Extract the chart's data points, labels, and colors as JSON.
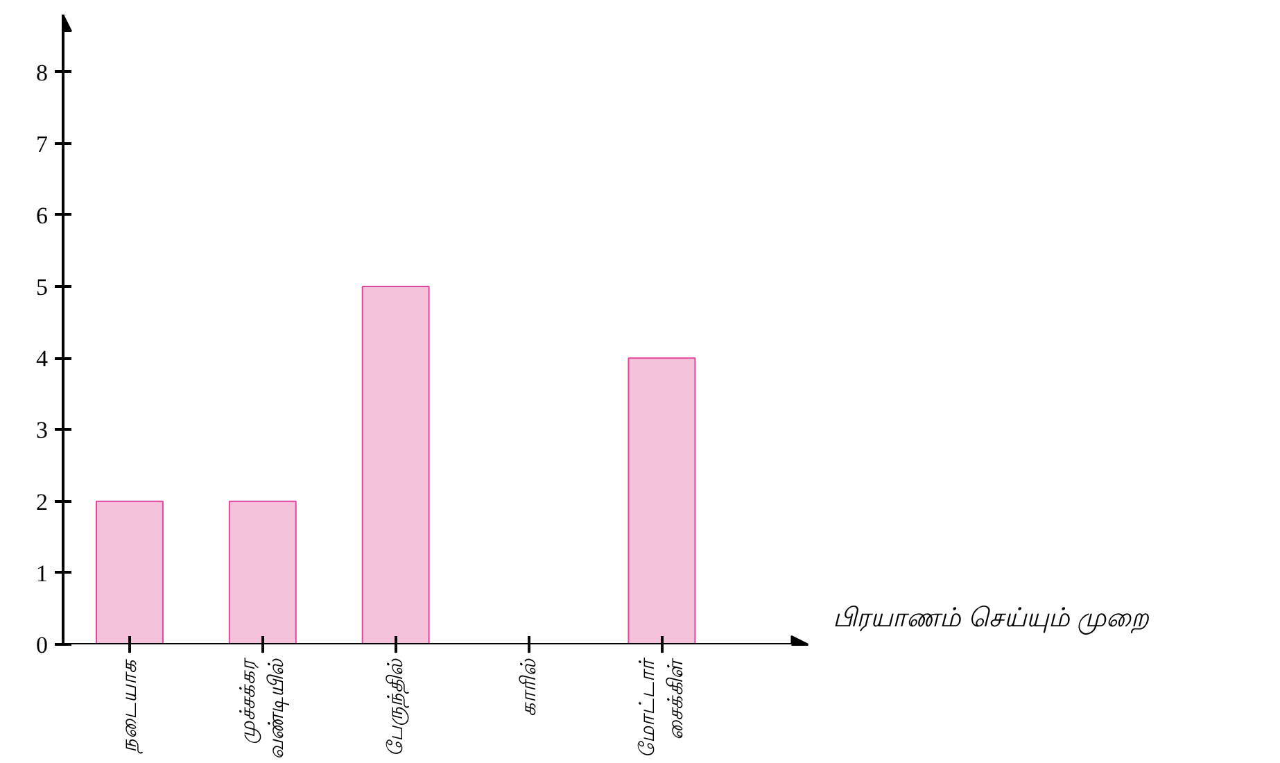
{
  "chart_data": {
    "type": "bar",
    "xlabel": "பிரயாணம் செய்யும் முறை",
    "categories": [
      "நடையாக",
      "முச்சக்கர\nவண்டியில்",
      "பேருந்தில்",
      "காரில்",
      "மோட்டார்\nசைக்கிள்"
    ],
    "values": [
      2,
      2,
      5,
      0,
      4
    ],
    "color": "#f6c1da",
    "ylim": [
      0,
      8.8
    ],
    "yticks": [
      0,
      1,
      2,
      3,
      4,
      5,
      6,
      7,
      8
    ],
    "grid": false
  }
}
